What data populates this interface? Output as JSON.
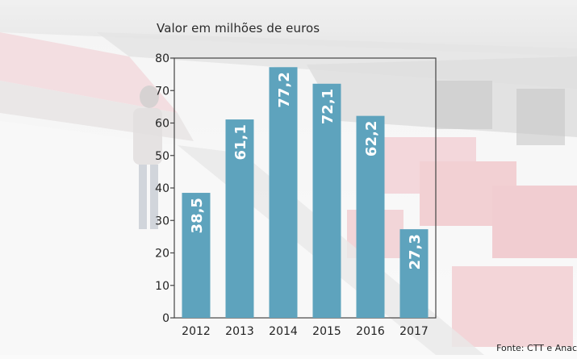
{
  "chart_data": {
    "type": "bar",
    "title": "Valor em milhões de euros",
    "categories": [
      "2012",
      "2013",
      "2014",
      "2015",
      "2016",
      "2017"
    ],
    "values": [
      38.5,
      61.1,
      77.2,
      72.1,
      62.2,
      27.3
    ],
    "value_labels": [
      "38,5",
      "61,1",
      "77,2",
      "72,1",
      "62,2",
      "27,3"
    ],
    "ylim": [
      0,
      80
    ],
    "yticks": [
      "0",
      "10",
      "20",
      "30",
      "40",
      "50",
      "60",
      "70",
      "80"
    ],
    "grid": false,
    "bar_color": "#5ea3bd",
    "label_color": "#ffffff",
    "source": "Fonte: CTT e Anac"
  }
}
